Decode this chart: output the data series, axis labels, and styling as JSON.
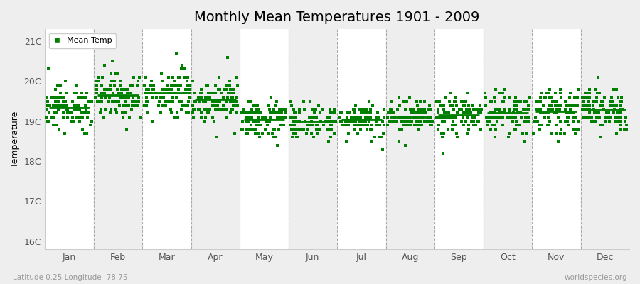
{
  "title": "Monthly Mean Temperatures 1901 - 2009",
  "ylabel": "Temperature",
  "xlabel_lat_lon": "Latitude 0.25 Longitude -78.75",
  "watermark": "worldspecies.org",
  "marker": "s",
  "marker_color": "#008000",
  "marker_size": 2.5,
  "background_color": "#eeeeee",
  "alt_col_color": "#ffffff",
  "ytick_labels": [
    "16C",
    "17C",
    "18C",
    "19C",
    "20C",
    "21C"
  ],
  "ytick_values": [
    16,
    17,
    18,
    19,
    20,
    21
  ],
  "ylim": [
    15.8,
    21.3
  ],
  "month_names": [
    "Jan",
    "Feb",
    "Mar",
    "Apr",
    "May",
    "Jun",
    "Jul",
    "Aug",
    "Sep",
    "Oct",
    "Nov",
    "Dec"
  ],
  "legend_label": "Mean Temp",
  "title_fontsize": 14,
  "axis_fontsize": 9,
  "tick_fontsize": 9,
  "monthly_means": [
    19.35,
    19.65,
    19.7,
    19.55,
    19.05,
    19.0,
    19.05,
    19.1,
    19.15,
    19.2,
    19.25,
    19.3
  ],
  "monthly_stds": [
    0.28,
    0.3,
    0.3,
    0.28,
    0.25,
    0.22,
    0.22,
    0.22,
    0.25,
    0.26,
    0.26,
    0.27
  ],
  "n_years": 109
}
